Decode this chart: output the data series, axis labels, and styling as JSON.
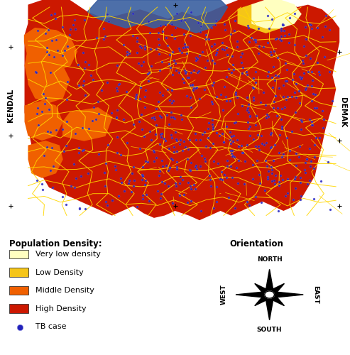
{
  "bg_color": "#ffffff",
  "map_colors": {
    "very_low": "#ffffc0",
    "low": "#f5c518",
    "middle": "#f06000",
    "high": "#cc1800",
    "water": "#3a5fa0",
    "border_yellow": "#ffd700",
    "border_dark": "#cc3300"
  },
  "legend_labels": [
    "Very low density",
    "Low Density",
    "Middle Density",
    "High Density",
    "TB case"
  ],
  "legend_colors": [
    "#ffffc0",
    "#f5c518",
    "#f06000",
    "#cc1800",
    "#2222bb"
  ],
  "compass_labels": [
    "NORTH",
    "SOUTH",
    "EAST",
    "WEST"
  ],
  "side_labels": [
    "KENDAL",
    "DEMAK"
  ],
  "orientation_title": "Orientation",
  "legend_title": "Population Density:",
  "figsize": [
    4.93,
    5.0
  ],
  "dpi": 100
}
